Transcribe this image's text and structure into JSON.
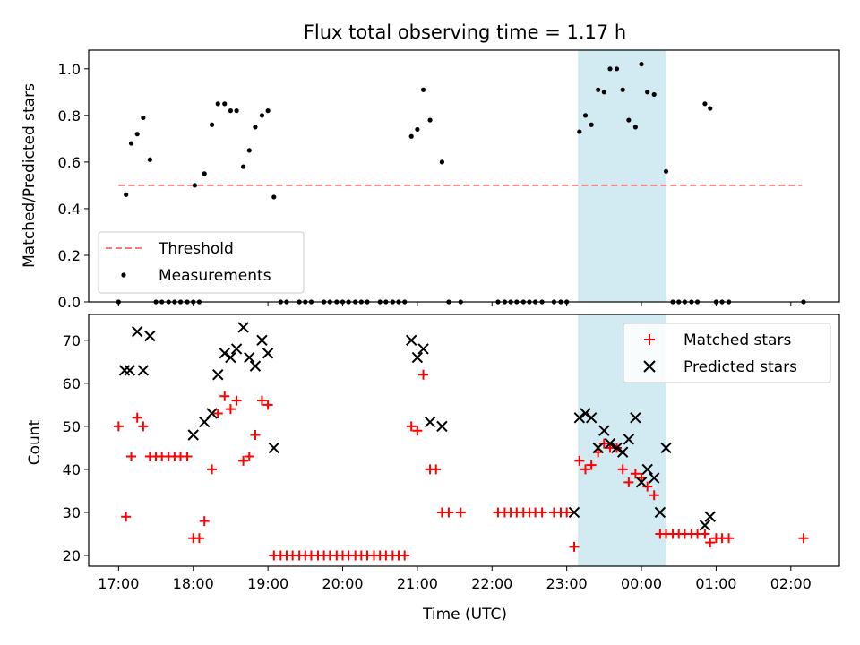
{
  "chart_data": [
    {
      "type": "scatter",
      "title": "Flux total observing time = 1.17 h",
      "xlabel": "",
      "ylabel": "Matched/Predicted stars",
      "xlim": [
        16.6,
        26.65
      ],
      "ylim": [
        0.0,
        1.08
      ],
      "x_ticks": [
        17,
        18,
        19,
        20,
        21,
        22,
        23,
        24,
        25,
        26
      ],
      "y_ticks": [
        0.0,
        0.2,
        0.4,
        0.6,
        0.8,
        1.0
      ],
      "y_tick_labels": [
        "0.0",
        "0.2",
        "0.4",
        "0.6",
        "0.8",
        "1.0"
      ],
      "highlight_span": [
        23.15,
        24.33
      ],
      "highlight_color": "#add8e6",
      "legend_position": "lower-left",
      "series": [
        {
          "name": "Threshold",
          "style": "dashed-line",
          "color": "#f08080",
          "x": [
            17.0,
            26.15
          ],
          "y": [
            0.5,
            0.5
          ]
        },
        {
          "name": "Measurements",
          "style": "dot",
          "color": "#000000",
          "x": [
            17.0,
            17.1,
            17.17,
            17.25,
            17.33,
            17.42,
            17.5,
            17.58,
            17.67,
            17.75,
            17.83,
            17.92,
            18.0,
            18.02,
            18.08,
            18.15,
            18.25,
            18.33,
            18.42,
            18.5,
            18.58,
            18.67,
            18.75,
            18.83,
            18.92,
            19.0,
            19.08,
            19.17,
            19.25,
            19.42,
            19.5,
            19.58,
            19.75,
            19.83,
            19.92,
            20.0,
            20.08,
            20.17,
            20.25,
            20.33,
            20.5,
            20.58,
            20.67,
            20.75,
            20.83,
            20.92,
            21.0,
            21.08,
            21.17,
            21.33,
            21.42,
            21.58,
            22.08,
            22.17,
            22.25,
            22.33,
            22.42,
            22.5,
            22.58,
            22.67,
            22.83,
            22.92,
            23.0,
            23.17,
            23.25,
            23.33,
            23.42,
            23.5,
            23.58,
            23.67,
            23.75,
            23.83,
            23.92,
            24.0,
            24.08,
            24.17,
            24.33,
            24.42,
            24.5,
            24.58,
            24.67,
            24.75,
            24.85,
            24.92,
            25.0,
            25.08,
            25.17,
            26.17
          ],
          "y": [
            0.0,
            0.46,
            0.68,
            0.72,
            0.79,
            0.61,
            0.0,
            0.0,
            0.0,
            0.0,
            0.0,
            0.0,
            0.0,
            0.5,
            0.0,
            0.55,
            0.76,
            0.85,
            0.85,
            0.82,
            0.82,
            0.58,
            0.65,
            0.75,
            0.8,
            0.82,
            0.45,
            0.0,
            0.0,
            0.0,
            0.0,
            0.0,
            0.0,
            0.0,
            0.0,
            0.0,
            0.0,
            0.0,
            0.0,
            0.0,
            0.0,
            0.0,
            0.0,
            0.0,
            0.0,
            0.71,
            0.74,
            0.91,
            0.78,
            0.6,
            0.0,
            0.0,
            0.0,
            0.0,
            0.0,
            0.0,
            0.0,
            0.0,
            0.0,
            0.0,
            0.0,
            0.0,
            0.0,
            0.73,
            0.8,
            0.76,
            0.91,
            0.9,
            1.0,
            1.0,
            0.91,
            0.78,
            0.75,
            1.02,
            0.9,
            0.89,
            0.56,
            0.0,
            0.0,
            0.0,
            0.0,
            0.0,
            0.85,
            0.83,
            0.0,
            0.0,
            0.0,
            0.0
          ]
        }
      ]
    },
    {
      "type": "scatter",
      "title": "",
      "xlabel": "Time (UTC)",
      "ylabel": "Count",
      "xlim": [
        16.6,
        26.65
      ],
      "ylim": [
        17.5,
        76.0
      ],
      "x_ticks": [
        17,
        18,
        19,
        20,
        21,
        22,
        23,
        24,
        25,
        26
      ],
      "x_tick_labels": [
        "17:00",
        "18:00",
        "19:00",
        "20:00",
        "21:00",
        "22:00",
        "23:00",
        "00:00",
        "01:00",
        "02:00"
      ],
      "y_ticks": [
        20,
        30,
        40,
        50,
        60,
        70
      ],
      "y_tick_labels": [
        "20",
        "30",
        "40",
        "50",
        "60",
        "70"
      ],
      "highlight_span": [
        23.15,
        24.33
      ],
      "highlight_color": "#add8e6",
      "legend_position": "top-right",
      "series": [
        {
          "name": "Matched stars",
          "style": "plus",
          "color": "#ff0000",
          "x": [
            17.0,
            17.1,
            17.17,
            17.25,
            17.33,
            17.42,
            17.5,
            17.58,
            17.67,
            17.75,
            17.83,
            17.92,
            18.0,
            18.08,
            18.15,
            18.25,
            18.33,
            18.42,
            18.5,
            18.58,
            18.67,
            18.75,
            18.83,
            18.92,
            19.0,
            19.08,
            19.17,
            19.25,
            19.33,
            19.42,
            19.5,
            19.58,
            19.67,
            19.75,
            19.83,
            19.92,
            20.0,
            20.08,
            20.17,
            20.25,
            20.33,
            20.42,
            20.5,
            20.58,
            20.67,
            20.75,
            20.83,
            20.92,
            21.0,
            21.08,
            21.17,
            21.25,
            21.33,
            21.42,
            21.58,
            22.08,
            22.17,
            22.25,
            22.33,
            22.42,
            22.5,
            22.58,
            22.67,
            22.83,
            22.92,
            23.0,
            23.1,
            23.17,
            23.25,
            23.33,
            23.42,
            23.5,
            23.58,
            23.67,
            23.75,
            23.83,
            23.92,
            24.0,
            24.08,
            24.17,
            24.25,
            24.33,
            24.42,
            24.5,
            24.58,
            24.67,
            24.75,
            24.85,
            24.92,
            25.0,
            25.08,
            25.17,
            26.17
          ],
          "y": [
            50,
            29,
            43,
            52,
            50,
            43,
            43,
            43,
            43,
            43,
            43,
            43,
            24,
            24,
            28,
            40,
            53,
            57,
            54,
            56,
            42,
            43,
            48,
            56,
            55,
            20,
            20,
            20,
            20,
            20,
            20,
            20,
            20,
            20,
            20,
            20,
            20,
            20,
            20,
            20,
            20,
            20,
            20,
            20,
            20,
            20,
            20,
            50,
            49,
            62,
            40,
            40,
            30,
            30,
            30,
            30,
            30,
            30,
            30,
            30,
            30,
            30,
            30,
            30,
            30,
            30,
            22,
            42,
            40,
            41,
            44,
            46,
            45,
            45,
            40,
            37,
            39,
            38,
            36,
            34,
            25,
            25,
            25,
            25,
            25,
            25,
            25,
            25,
            23,
            24,
            24,
            24,
            24
          ]
        },
        {
          "name": "Predicted stars",
          "style": "x",
          "color": "#000000",
          "x": [
            17.08,
            17.15,
            17.25,
            17.33,
            17.42,
            18.0,
            18.15,
            18.25,
            18.33,
            18.42,
            18.5,
            18.58,
            18.67,
            18.75,
            18.83,
            18.92,
            19.0,
            19.08,
            20.92,
            21.0,
            21.08,
            21.17,
            21.33,
            23.1,
            23.17,
            23.25,
            23.33,
            23.42,
            23.5,
            23.58,
            23.67,
            23.75,
            23.83,
            23.92,
            24.0,
            24.08,
            24.17,
            24.25,
            24.33,
            24.85,
            24.92
          ],
          "y": [
            63,
            63,
            72,
            63,
            71,
            48,
            51,
            53,
            62,
            67,
            66,
            68,
            73,
            66,
            64,
            70,
            67,
            45,
            70,
            66,
            68,
            51,
            50,
            30,
            52,
            53,
            52,
            45,
            49,
            46,
            45,
            44,
            47,
            52,
            37,
            40,
            38,
            30,
            45,
            27,
            29
          ]
        }
      ]
    }
  ]
}
